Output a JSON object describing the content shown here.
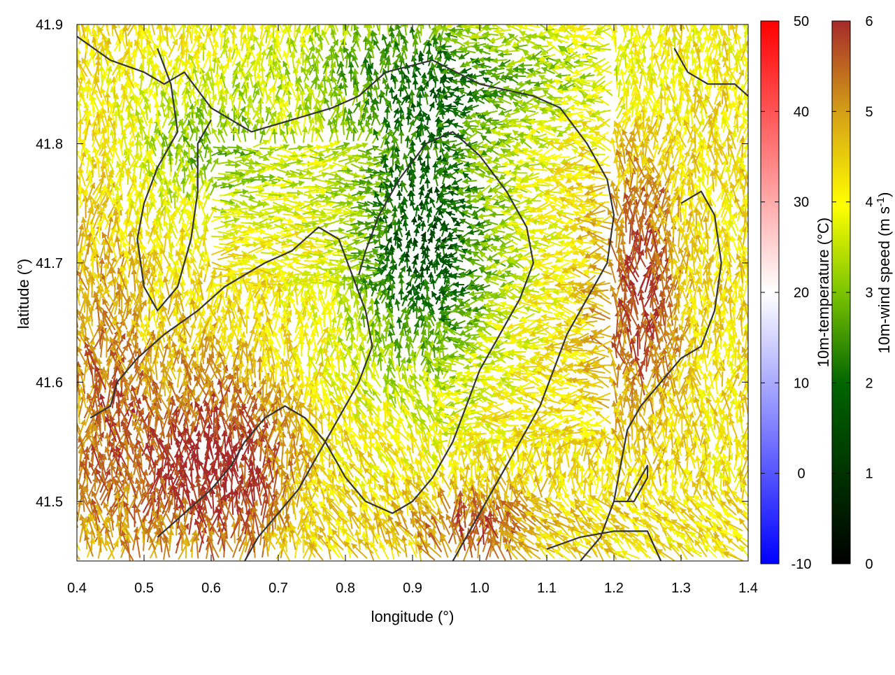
{
  "chart_data": {
    "type": "vector-field",
    "xlabel": "longitude (°)",
    "ylabel": "latitude (°)",
    "xlim": [
      0.4,
      1.4
    ],
    "ylim": [
      41.45,
      41.9
    ],
    "x_ticks": [
      0.4,
      0.5,
      0.6,
      0.7,
      0.8,
      0.9,
      1.0,
      1.1,
      1.2,
      1.3,
      1.4
    ],
    "x_tick_labels": [
      "0.4",
      "0.5",
      "0.6",
      "0.7",
      "0.8",
      "0.9",
      "1.0",
      "1.1",
      "1.2",
      "1.3",
      "1.4"
    ],
    "y_ticks": [
      41.5,
      41.6,
      41.7,
      41.8,
      41.9
    ],
    "y_tick_labels": [
      "41.5",
      "41.6",
      "41.7",
      "41.8",
      "41.9"
    ],
    "grid": false,
    "background_field": {
      "quantity": "10m-temperature",
      "colorbar_label": "10m-temperature (°C)",
      "range": [
        -10,
        50
      ],
      "ticks": [
        -10,
        0,
        10,
        20,
        30,
        40,
        50
      ],
      "tick_labels": [
        "-10",
        "0",
        "10",
        "20",
        "30",
        "40",
        "50"
      ],
      "colors": [
        "#0000ff",
        "#ffffff",
        "#ff0000"
      ]
    },
    "vector_field": {
      "quantity": "10m-wind speed",
      "colorbar_label": "10m-wind speed (m s-1)",
      "colorbar_label_main": "10m-wind speed (m s",
      "colorbar_label_exp": "-1",
      "colorbar_label_close": ")",
      "range": [
        0,
        6
      ],
      "ticks": [
        0,
        1,
        2,
        3,
        4,
        5,
        6
      ],
      "tick_labels": [
        "0",
        "1",
        "2",
        "3",
        "4",
        "5",
        "6"
      ],
      "colors": [
        "#000000",
        "#006400",
        "#7cc400",
        "#ffff00",
        "#d4a017",
        "#c87820",
        "#a52a2a"
      ]
    },
    "contours": [
      [
        [
          0.4,
          41.89
        ],
        [
          0.45,
          41.87
        ],
        [
          0.5,
          41.86
        ],
        [
          0.53,
          41.85
        ],
        [
          0.56,
          41.86
        ],
        [
          0.6,
          41.83
        ],
        [
          0.66,
          41.81
        ],
        [
          0.72,
          41.82
        ],
        [
          0.78,
          41.83
        ],
        [
          0.82,
          41.84
        ],
        [
          0.86,
          41.86
        ],
        [
          0.93,
          41.87
        ],
        [
          1.0,
          41.85
        ],
        [
          1.08,
          41.84
        ],
        [
          1.12,
          41.83
        ],
        [
          1.16,
          41.8
        ],
        [
          1.19,
          41.77
        ],
        [
          1.2,
          41.74
        ],
        [
          1.19,
          41.7
        ],
        [
          1.16,
          41.67
        ],
        [
          1.13,
          41.64
        ],
        [
          1.11,
          41.61
        ],
        [
          1.09,
          41.58
        ],
        [
          1.06,
          41.55
        ],
        [
          1.03,
          41.52
        ],
        [
          1.0,
          41.49
        ],
        [
          0.98,
          41.47
        ],
        [
          0.96,
          41.45
        ]
      ],
      [
        [
          0.52,
          41.88
        ],
        [
          0.54,
          41.85
        ],
        [
          0.55,
          41.81
        ],
        [
          0.52,
          41.78
        ],
        [
          0.5,
          41.75
        ],
        [
          0.49,
          41.72
        ],
        [
          0.5,
          41.68
        ],
        [
          0.52,
          41.66
        ],
        [
          0.55,
          41.68
        ],
        [
          0.57,
          41.72
        ],
        [
          0.58,
          41.76
        ],
        [
          0.58,
          41.8
        ],
        [
          0.6,
          41.82
        ]
      ],
      [
        [
          0.42,
          41.57
        ],
        [
          0.45,
          41.58
        ],
        [
          0.46,
          41.6
        ],
        [
          0.49,
          41.62
        ],
        [
          0.53,
          41.64
        ],
        [
          0.58,
          41.66
        ],
        [
          0.62,
          41.68
        ],
        [
          0.65,
          41.69
        ],
        [
          0.68,
          41.7
        ],
        [
          0.72,
          41.71
        ],
        [
          0.76,
          41.73
        ],
        [
          0.79,
          41.72
        ],
        [
          0.81,
          41.69
        ],
        [
          0.83,
          41.66
        ],
        [
          0.84,
          41.63
        ],
        [
          0.82,
          41.6
        ],
        [
          0.8,
          41.58
        ],
        [
          0.78,
          41.56
        ],
        [
          0.75,
          41.53
        ],
        [
          0.73,
          41.51
        ],
        [
          0.7,
          41.49
        ],
        [
          0.67,
          41.47
        ],
        [
          0.65,
          41.45
        ]
      ],
      [
        [
          0.52,
          41.47
        ],
        [
          0.56,
          41.49
        ],
        [
          0.6,
          41.51
        ],
        [
          0.63,
          41.53
        ],
        [
          0.65,
          41.55
        ],
        [
          0.68,
          41.57
        ],
        [
          0.71,
          41.58
        ],
        [
          0.74,
          41.57
        ],
        [
          0.77,
          41.55
        ],
        [
          0.8,
          41.52
        ],
        [
          0.83,
          41.5
        ],
        [
          0.87,
          41.49
        ],
        [
          0.9,
          41.5
        ],
        [
          0.93,
          41.52
        ],
        [
          0.96,
          41.55
        ],
        [
          0.98,
          41.58
        ],
        [
          1.0,
          41.61
        ],
        [
          1.03,
          41.64
        ],
        [
          1.06,
          41.67
        ],
        [
          1.08,
          41.7
        ],
        [
          1.07,
          41.73
        ],
        [
          1.04,
          41.76
        ],
        [
          1.0,
          41.79
        ],
        [
          0.96,
          41.81
        ],
        [
          0.92,
          41.8
        ],
        [
          0.88,
          41.77
        ],
        [
          0.85,
          41.74
        ],
        [
          0.83,
          41.71
        ],
        [
          0.82,
          41.69
        ]
      ],
      [
        [
          1.29,
          41.88
        ],
        [
          1.31,
          41.86
        ],
        [
          1.34,
          41.85
        ],
        [
          1.38,
          41.85
        ],
        [
          1.4,
          41.84
        ]
      ],
      [
        [
          1.3,
          41.75
        ],
        [
          1.33,
          41.76
        ],
        [
          1.35,
          41.74
        ],
        [
          1.36,
          41.7
        ],
        [
          1.35,
          41.66
        ],
        [
          1.33,
          41.63
        ],
        [
          1.3,
          41.62
        ],
        [
          1.27,
          41.6
        ],
        [
          1.24,
          41.58
        ],
        [
          1.22,
          41.56
        ],
        [
          1.21,
          41.53
        ],
        [
          1.2,
          41.5
        ],
        [
          1.18,
          41.47
        ],
        [
          1.15,
          41.45
        ]
      ],
      [
        [
          1.2,
          41.5
        ],
        [
          1.23,
          41.5
        ],
        [
          1.25,
          41.52
        ],
        [
          1.25,
          41.53
        ],
        [
          1.24,
          41.52
        ],
        [
          1.22,
          41.5
        ]
      ],
      [
        [
          1.1,
          41.46
        ],
        [
          1.15,
          41.47
        ],
        [
          1.2,
          41.475
        ],
        [
          1.25,
          41.475
        ],
        [
          1.27,
          41.45
        ]
      ]
    ]
  }
}
